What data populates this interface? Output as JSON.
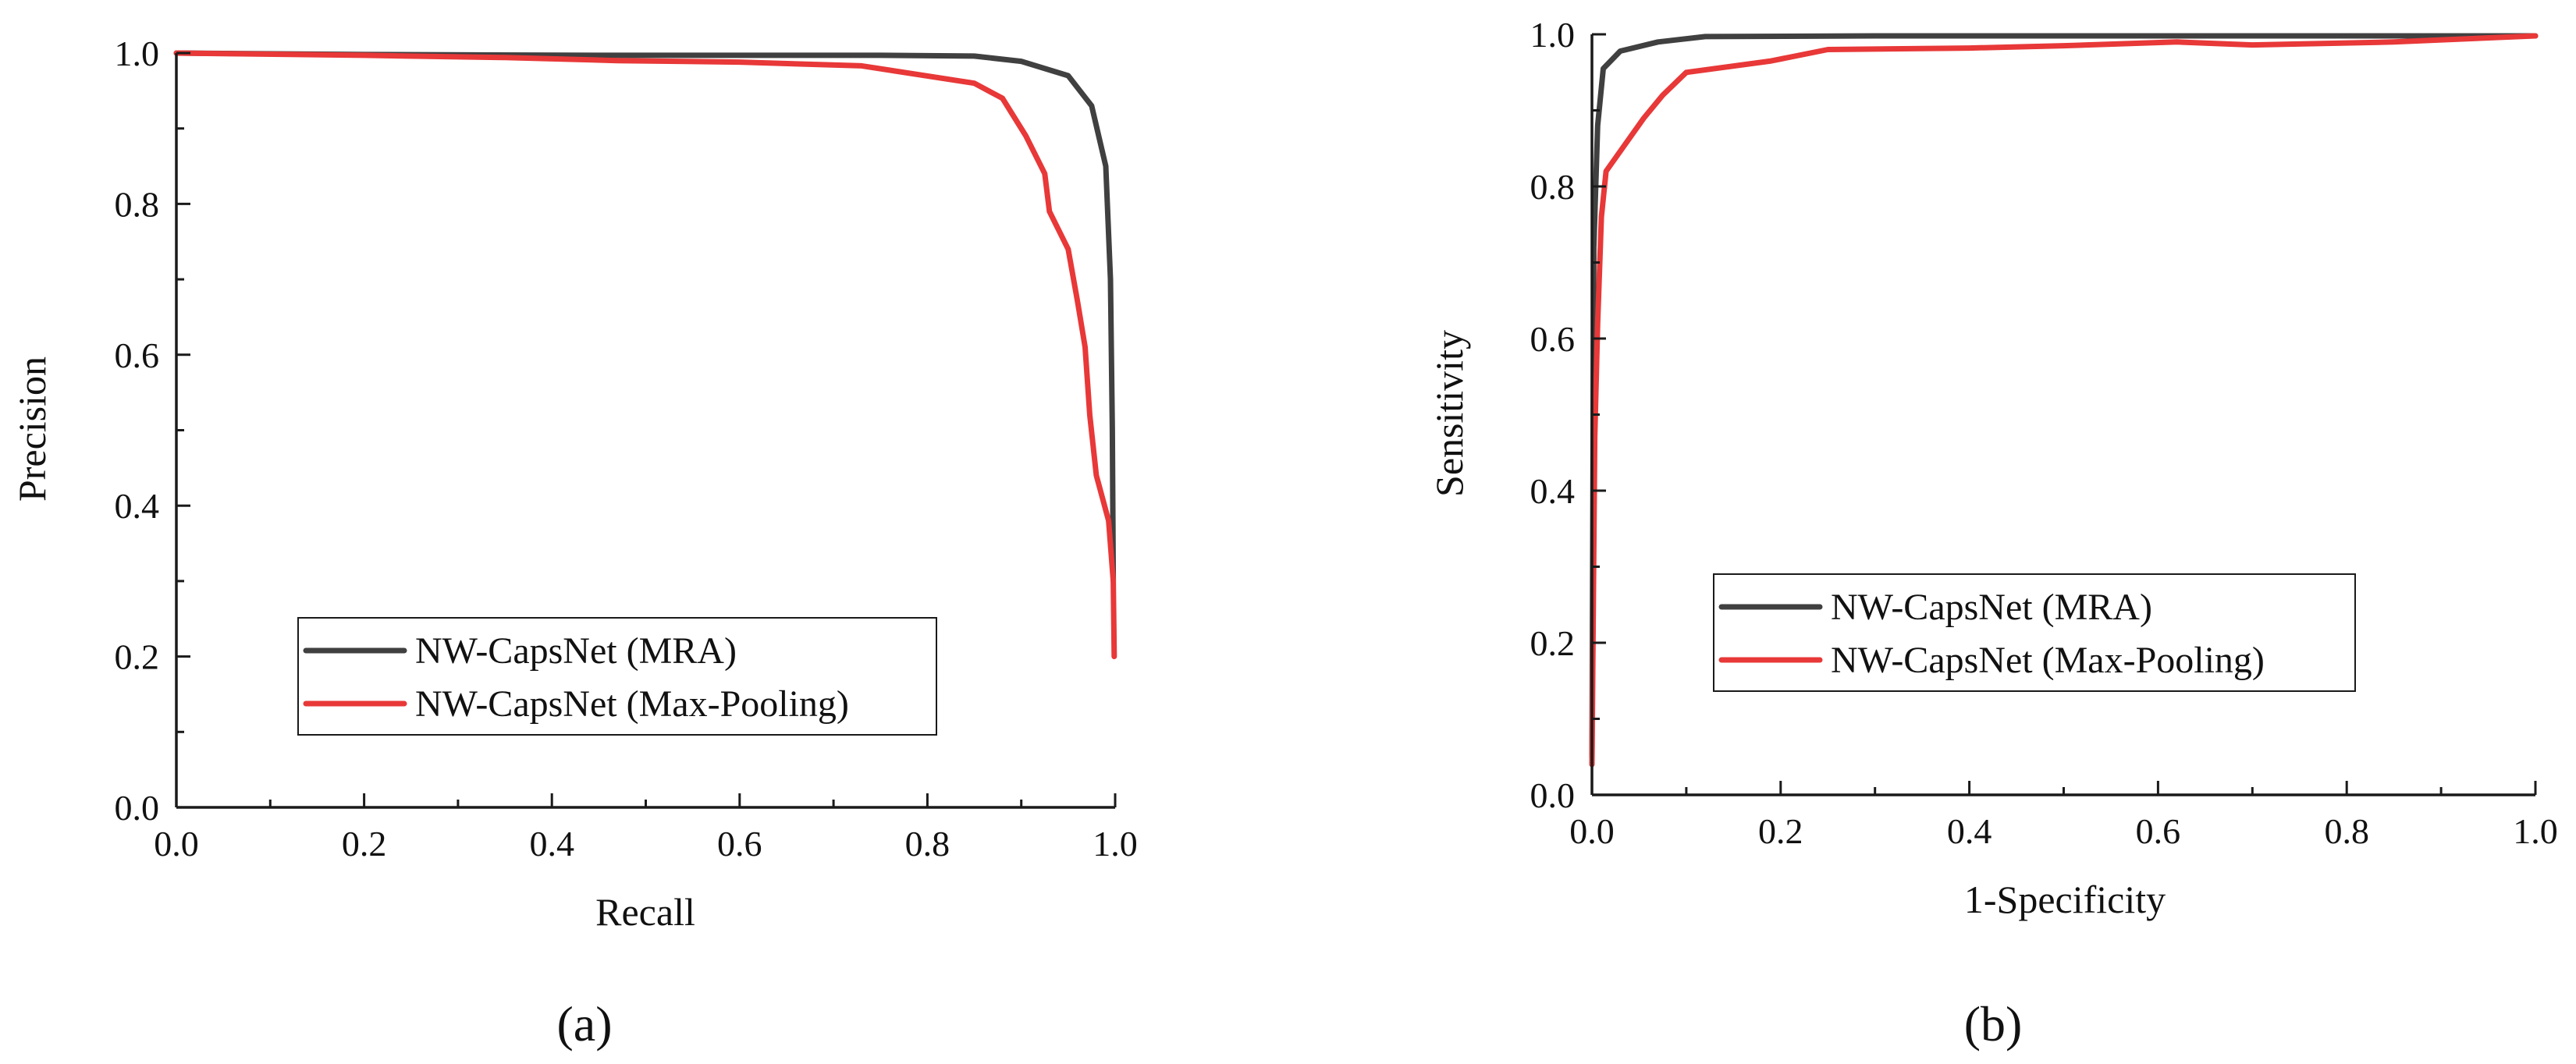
{
  "chart_data": [
    {
      "type": "line",
      "panel_label": "(a)",
      "title": "",
      "xlabel": "Recall",
      "ylabel": "Precision",
      "xlim": [
        0,
        1
      ],
      "ylim": [
        0,
        1
      ],
      "xticks": [
        "0.0",
        "0.2",
        "0.4",
        "0.6",
        "0.8",
        "1.0"
      ],
      "yticks": [
        "0.0",
        "0.2",
        "0.4",
        "0.6",
        "0.8",
        "1.0"
      ],
      "legend": "lower-center",
      "series": [
        {
          "name": "NW-CapsNet (MRA)",
          "color": "#404040",
          "points": [
            [
              0.0,
              1.0
            ],
            [
              0.2,
              0.998
            ],
            [
              0.45,
              0.997
            ],
            [
              0.6,
              0.997
            ],
            [
              0.75,
              0.997
            ],
            [
              0.85,
              0.996
            ],
            [
              0.9,
              0.989
            ],
            [
              0.95,
              0.97
            ],
            [
              0.975,
              0.93
            ],
            [
              0.99,
              0.85
            ],
            [
              0.995,
              0.7
            ],
            [
              0.997,
              0.5
            ],
            [
              0.998,
              0.3
            ]
          ]
        },
        {
          "name": "NW-CapsNet (Max-Pooling)",
          "color": "#e83838",
          "points": [
            [
              0.0,
              1.0
            ],
            [
              0.2,
              0.997
            ],
            [
              0.35,
              0.994
            ],
            [
              0.47,
              0.99
            ],
            [
              0.6,
              0.988
            ],
            [
              0.73,
              0.983
            ],
            [
              0.85,
              0.96
            ],
            [
              0.88,
              0.94
            ],
            [
              0.905,
              0.89
            ],
            [
              0.925,
              0.84
            ],
            [
              0.93,
              0.79
            ],
            [
              0.95,
              0.74
            ],
            [
              0.96,
              0.67
            ],
            [
              0.968,
              0.61
            ],
            [
              0.973,
              0.52
            ],
            [
              0.98,
              0.44
            ],
            [
              0.993,
              0.38
            ],
            [
              0.998,
              0.3
            ],
            [
              0.999,
              0.2
            ]
          ]
        }
      ]
    },
    {
      "type": "line",
      "panel_label": "(b)",
      "title": "",
      "xlabel": "1-Specificity",
      "ylabel": "Sensitivity",
      "xlim": [
        0,
        1
      ],
      "ylim": [
        0,
        1
      ],
      "xticks": [
        "0.0",
        "0.2",
        "0.4",
        "0.6",
        "0.8",
        "1.0"
      ],
      "yticks": [
        "0.0",
        "0.2",
        "0.4",
        "0.6",
        "0.8",
        "1.0"
      ],
      "legend": "lower-center",
      "series": [
        {
          "name": "NW-CapsNet (MRA)",
          "color": "#404040",
          "points": [
            [
              0.0,
              0.05
            ],
            [
              0.002,
              0.72
            ],
            [
              0.006,
              0.88
            ],
            [
              0.012,
              0.955
            ],
            [
              0.03,
              0.978
            ],
            [
              0.07,
              0.99
            ],
            [
              0.12,
              0.997
            ],
            [
              0.3,
              0.998
            ],
            [
              0.6,
              0.998
            ],
            [
              0.85,
              0.998
            ],
            [
              1.0,
              0.998
            ]
          ]
        },
        {
          "name": "NW-CapsNet (Max-Pooling)",
          "color": "#e83838",
          "points": [
            [
              0.0,
              0.04
            ],
            [
              0.003,
              0.47
            ],
            [
              0.006,
              0.62
            ],
            [
              0.01,
              0.76
            ],
            [
              0.015,
              0.82
            ],
            [
              0.035,
              0.855
            ],
            [
              0.055,
              0.89
            ],
            [
              0.075,
              0.92
            ],
            [
              0.1,
              0.95
            ],
            [
              0.19,
              0.965
            ],
            [
              0.25,
              0.98
            ],
            [
              0.4,
              0.982
            ],
            [
              0.5,
              0.985
            ],
            [
              0.62,
              0.99
            ],
            [
              0.7,
              0.986
            ],
            [
              0.85,
              0.99
            ],
            [
              1.0,
              0.998
            ]
          ]
        }
      ]
    }
  ]
}
